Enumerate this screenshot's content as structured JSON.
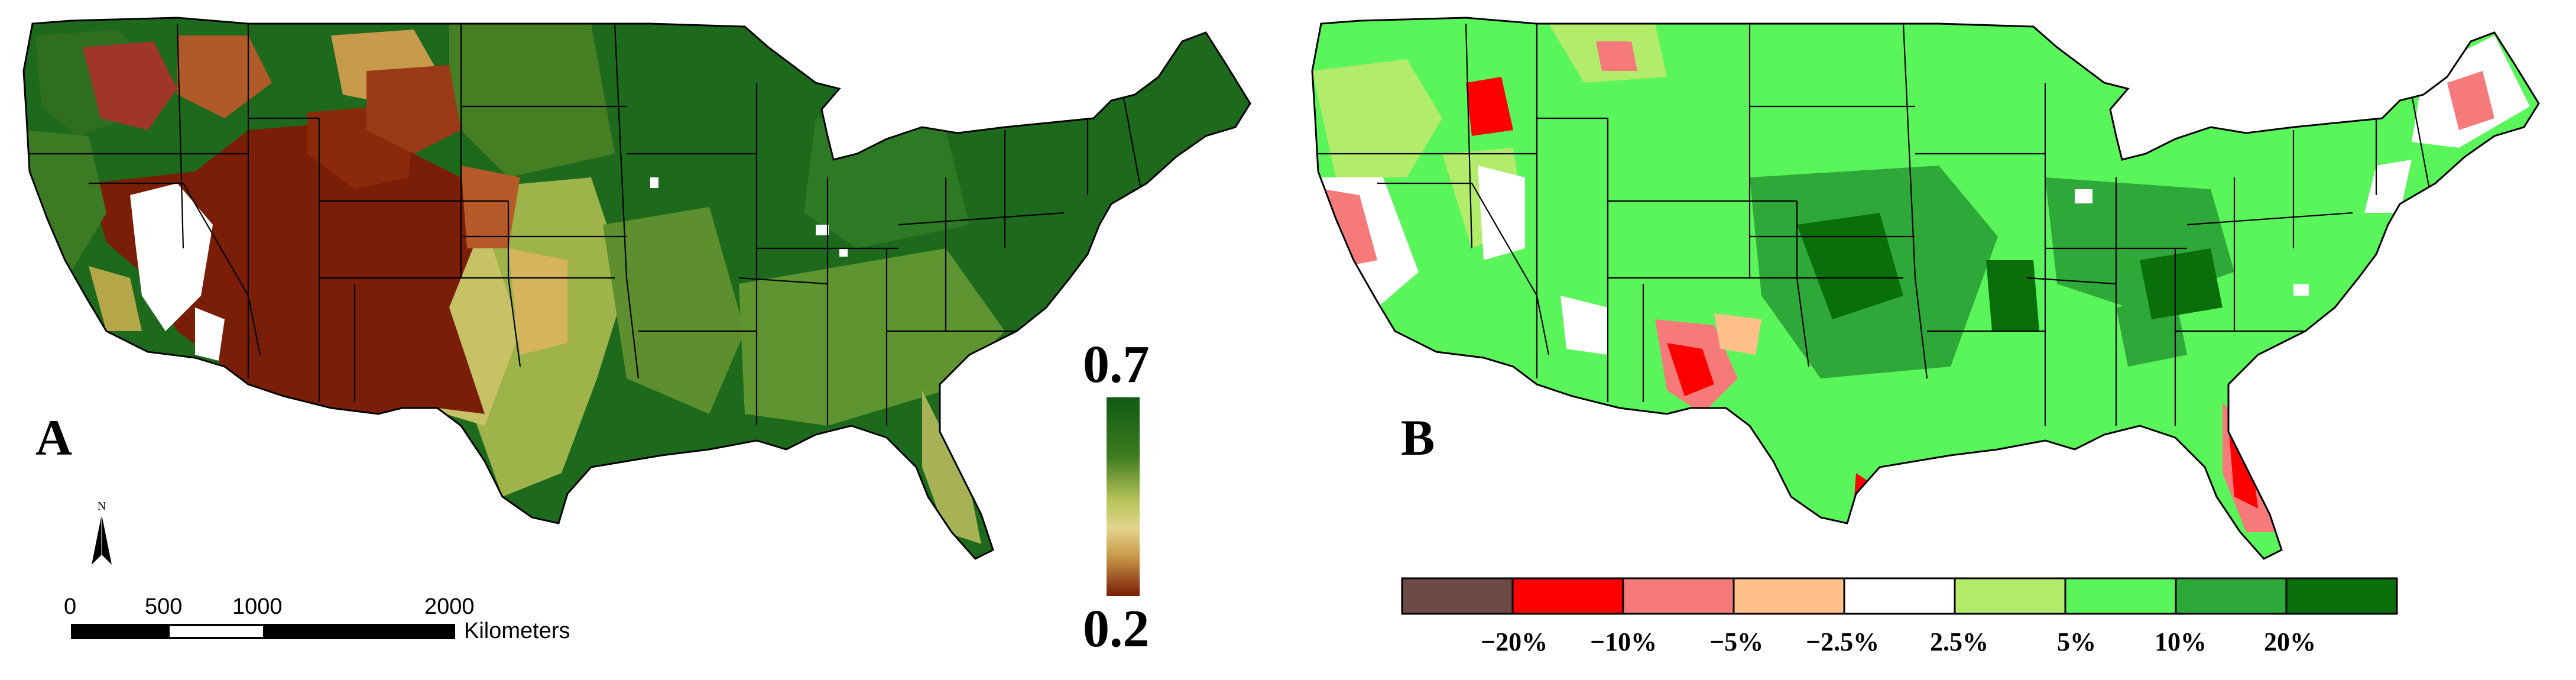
{
  "panels": [
    {
      "letter": "A",
      "legend": {
        "max_label": "0.7",
        "min_label": "0.2",
        "colors": [
          "#0f5a14",
          "#3f7d20",
          "#b9c45a",
          "#e2d48c",
          "#c99a4a",
          "#7a1c05"
        ]
      },
      "north_arrow": {
        "label": "N"
      },
      "scale_bar": {
        "ticks": [
          "0",
          "500",
          "1000",
          "2000"
        ],
        "unit": "Kilometers"
      }
    },
    {
      "letter": "B",
      "legend": {
        "classes": [
          {
            "color": "#6d4a45"
          },
          {
            "color": "#ff0000"
          },
          {
            "color": "#f77a7a"
          },
          {
            "color": "#ffc08a"
          },
          {
            "color": "#ffffff"
          },
          {
            "color": "#b3ec6a"
          },
          {
            "color": "#5af55a"
          },
          {
            "color": "#2fa83a"
          },
          {
            "color": "#0a6e0a"
          }
        ],
        "break_labels": [
          "−20%",
          "−10%",
          "−5%",
          "−2.5%",
          "2.5%",
          "5%",
          "10%",
          "20%"
        ]
      }
    }
  ]
}
